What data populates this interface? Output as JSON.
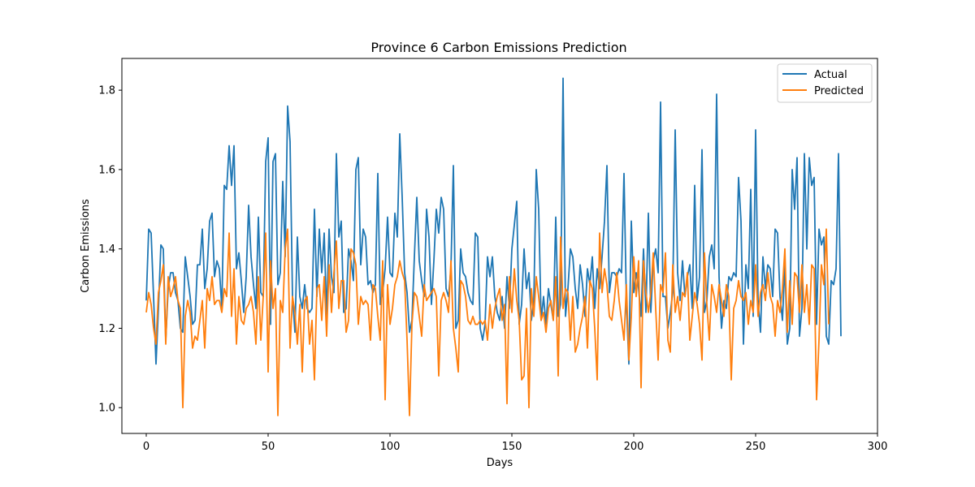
{
  "chart_data": {
    "type": "line",
    "title": "Province 6 Carbon Emissions Prediction",
    "xlabel": "Days",
    "ylabel": "Carbon Emissions",
    "xlim": [
      -10,
      300
    ],
    "ylim": [
      0.935,
      1.88
    ],
    "x_ticks": [
      0,
      50,
      100,
      150,
      200,
      250,
      300
    ],
    "y_ticks": [
      1.0,
      1.2,
      1.4,
      1.6,
      1.8
    ],
    "grid": false,
    "legend_position": "top-right",
    "series": [
      {
        "name": "Actual",
        "color": "#1f77b4",
        "values": [
          1.27,
          1.45,
          1.44,
          1.28,
          1.11,
          1.25,
          1.41,
          1.4,
          1.17,
          1.3,
          1.34,
          1.34,
          1.29,
          1.27,
          1.2,
          1.19,
          1.38,
          1.33,
          1.28,
          1.21,
          1.22,
          1.36,
          1.36,
          1.45,
          1.3,
          1.35,
          1.47,
          1.49,
          1.33,
          1.37,
          1.35,
          1.25,
          1.56,
          1.55,
          1.66,
          1.56,
          1.66,
          1.35,
          1.39,
          1.32,
          1.24,
          1.33,
          1.51,
          1.38,
          1.31,
          1.25,
          1.48,
          1.29,
          1.28,
          1.62,
          1.68,
          1.21,
          1.62,
          1.64,
          1.31,
          1.34,
          1.57,
          1.38,
          1.76,
          1.67,
          1.28,
          1.19,
          1.43,
          1.28,
          1.25,
          1.31,
          1.25,
          1.24,
          1.25,
          1.5,
          1.28,
          1.45,
          1.34,
          1.44,
          1.23,
          1.45,
          1.33,
          1.29,
          1.64,
          1.43,
          1.47,
          1.24,
          1.25,
          1.4,
          1.37,
          1.32,
          1.6,
          1.63,
          1.36,
          1.45,
          1.43,
          1.31,
          1.32,
          1.29,
          1.31,
          1.59,
          1.26,
          1.29,
          1.35,
          1.48,
          1.34,
          1.33,
          1.49,
          1.43,
          1.69,
          1.53,
          1.34,
          1.29,
          1.19,
          1.22,
          1.38,
          1.53,
          1.37,
          1.32,
          1.28,
          1.5,
          1.43,
          1.26,
          1.37,
          1.5,
          1.44,
          1.53,
          1.5,
          1.3,
          1.28,
          1.35,
          1.61,
          1.2,
          1.22,
          1.4,
          1.34,
          1.33,
          1.29,
          1.27,
          1.26,
          1.44,
          1.43,
          1.2,
          1.17,
          1.21,
          1.38,
          1.33,
          1.38,
          1.28,
          1.24,
          1.22,
          1.28,
          1.2,
          1.33,
          1.25,
          1.4,
          1.46,
          1.52,
          1.21,
          1.26,
          1.4,
          1.3,
          1.34,
          1.22,
          1.27,
          1.6,
          1.5,
          1.22,
          1.28,
          1.21,
          1.3,
          1.26,
          1.22,
          1.48,
          1.23,
          1.26,
          1.83,
          1.23,
          1.3,
          1.4,
          1.38,
          1.3,
          1.25,
          1.36,
          1.31,
          1.23,
          1.35,
          1.31,
          1.38,
          1.25,
          1.35,
          1.3,
          1.38,
          1.47,
          1.61,
          1.29,
          1.34,
          1.34,
          1.33,
          1.35,
          1.34,
          1.59,
          1.26,
          1.11,
          1.47,
          1.29,
          1.34,
          1.3,
          1.23,
          1.4,
          1.24,
          1.49,
          1.24,
          1.37,
          1.4,
          1.34,
          1.77,
          1.28,
          1.28,
          1.2,
          1.24,
          1.29,
          1.7,
          1.34,
          1.27,
          1.37,
          1.28,
          1.33,
          1.36,
          1.25,
          1.56,
          1.27,
          1.33,
          1.65,
          1.24,
          1.27,
          1.38,
          1.41,
          1.35,
          1.79,
          1.33,
          1.2,
          1.27,
          1.25,
          1.33,
          1.32,
          1.34,
          1.33,
          1.58,
          1.47,
          1.16,
          1.36,
          1.3,
          1.55,
          1.23,
          1.7,
          1.27,
          1.19,
          1.38,
          1.3,
          1.36,
          1.35,
          1.28,
          1.45,
          1.44,
          1.28,
          1.22,
          1.36,
          1.16,
          1.2,
          1.6,
          1.5,
          1.63,
          1.18,
          1.25,
          1.64,
          1.4,
          1.63,
          1.56,
          1.58,
          1.21,
          1.45,
          1.41,
          1.43,
          1.18,
          1.16,
          1.32,
          1.31,
          1.35,
          1.64,
          1.18
        ]
      },
      {
        "name": "Predicted",
        "color": "#ff7f0e",
        "values": [
          1.24,
          1.29,
          1.26,
          1.2,
          1.16,
          1.29,
          1.32,
          1.36,
          1.16,
          1.33,
          1.28,
          1.3,
          1.33,
          1.27,
          1.25,
          1.0,
          1.23,
          1.27,
          1.24,
          1.15,
          1.18,
          1.17,
          1.22,
          1.27,
          1.15,
          1.3,
          1.27,
          1.33,
          1.26,
          1.27,
          1.27,
          1.24,
          1.3,
          1.28,
          1.44,
          1.23,
          1.35,
          1.16,
          1.28,
          1.22,
          1.21,
          1.25,
          1.26,
          1.28,
          1.24,
          1.16,
          1.33,
          1.17,
          1.28,
          1.44,
          1.09,
          1.37,
          1.25,
          1.3,
          0.98,
          1.27,
          1.24,
          1.4,
          1.45,
          1.15,
          1.28,
          1.24,
          1.16,
          1.26,
          1.09,
          1.27,
          1.28,
          1.16,
          1.22,
          1.07,
          1.3,
          1.31,
          1.22,
          1.33,
          1.18,
          1.36,
          1.24,
          1.34,
          1.42,
          1.25,
          1.32,
          1.32,
          1.19,
          1.22,
          1.4,
          1.39,
          1.36,
          1.21,
          1.28,
          1.26,
          1.27,
          1.26,
          1.17,
          1.31,
          1.3,
          1.23,
          1.17,
          1.37,
          1.02,
          1.31,
          1.21,
          1.25,
          1.31,
          1.33,
          1.37,
          1.34,
          1.32,
          1.17,
          0.98,
          1.21,
          1.29,
          1.28,
          1.23,
          1.18,
          1.31,
          1.27,
          1.28,
          1.29,
          1.3,
          1.28,
          1.08,
          1.27,
          1.29,
          1.27,
          1.24,
          1.37,
          1.2,
          1.15,
          1.09,
          1.32,
          1.31,
          1.28,
          1.22,
          1.21,
          1.23,
          1.21,
          1.21,
          1.22,
          1.21,
          1.22,
          1.17,
          1.26,
          1.2,
          1.25,
          1.28,
          1.3,
          1.22,
          1.26,
          1.01,
          1.33,
          1.24,
          1.35,
          1.27,
          1.22,
          1.07,
          1.08,
          1.25,
          1.0,
          1.3,
          1.23,
          1.33,
          1.28,
          1.22,
          1.24,
          1.19,
          1.25,
          1.27,
          1.22,
          1.33,
          1.08,
          1.43,
          1.25,
          1.3,
          1.29,
          1.17,
          1.28,
          1.14,
          1.16,
          1.2,
          1.23,
          1.28,
          1.15,
          1.32,
          1.3,
          1.2,
          1.07,
          1.44,
          1.29,
          1.35,
          1.31,
          1.23,
          1.22,
          1.27,
          1.34,
          1.27,
          1.22,
          1.17,
          1.31,
          1.12,
          1.23,
          1.38,
          1.28,
          1.37,
          1.05,
          1.37,
          1.29,
          1.24,
          1.29,
          1.39,
          1.25,
          1.12,
          1.31,
          1.29,
          1.39,
          1.17,
          1.14,
          1.36,
          1.24,
          1.28,
          1.22,
          1.29,
          1.28,
          1.34,
          1.17,
          1.23,
          1.29,
          1.26,
          1.21,
          1.12,
          1.39,
          1.26,
          1.17,
          1.31,
          1.28,
          1.24,
          1.31,
          1.27,
          1.23,
          1.31,
          1.28,
          1.07,
          1.25,
          1.27,
          1.32,
          1.28,
          1.27,
          1.29,
          1.21,
          1.27,
          1.24,
          1.36,
          1.23,
          1.29,
          1.31,
          1.27,
          1.34,
          1.28,
          1.26,
          1.18,
          1.27,
          1.24,
          1.3,
          1.4,
          1.19,
          1.32,
          1.21,
          1.34,
          1.33,
          1.24,
          1.36,
          1.24,
          1.31,
          1.21,
          1.36,
          1.35,
          1.02,
          1.17,
          1.36,
          1.31,
          1.45,
          1.21
        ]
      }
    ]
  }
}
